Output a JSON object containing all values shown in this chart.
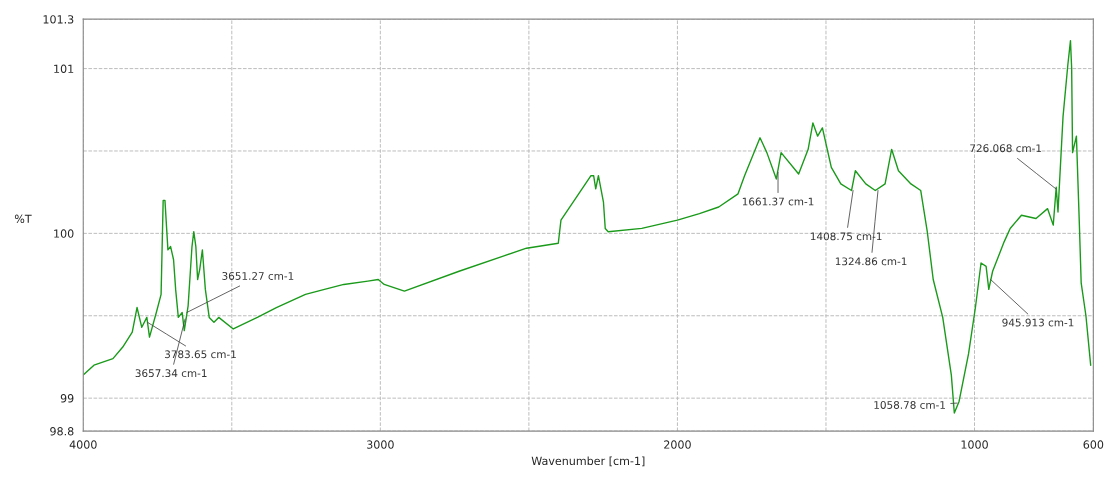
{
  "chart_data": {
    "type": "line",
    "xlabel": "Wavenumber [cm-1]",
    "ylabel": "%T",
    "xlim": [
      4000,
      600
    ],
    "ylim": [
      98.8,
      101.3
    ],
    "xticks": [
      4000,
      {
        "value": 3500,
        "label": null
      },
      3000,
      {
        "value": 2500,
        "label": null
      },
      2000,
      {
        "value": 1500,
        "label": null
      },
      1000,
      600
    ],
    "yticks": [
      98.8,
      99,
      {
        "value": 99.5,
        "label": null
      },
      100,
      {
        "value": 100.5,
        "label": null
      },
      101,
      101.3
    ],
    "grid": true,
    "line_style": "solid",
    "marker": "none",
    "series": [
      {
        "color": "#1a9a1a",
        "x": [
          4000,
          3964,
          3900,
          3867,
          3835,
          3819,
          3803,
          3786,
          3777,
          3754,
          3738,
          3731,
          3725,
          3715,
          3706,
          3696,
          3689,
          3680,
          3667,
          3660,
          3647,
          3634,
          3628,
          3621,
          3615,
          3608,
          3599,
          3589,
          3576,
          3560,
          3544,
          3495,
          3414,
          3350,
          3252,
          3188,
          3123,
          3042,
          3007,
          2987,
          2919,
          2735,
          2508,
          2401,
          2392,
          2291,
          2282,
          2275,
          2266,
          2249,
          2243,
          2233,
          2120,
          2000,
          1926,
          1861,
          1796,
          1774,
          1722,
          1699,
          1667,
          1651,
          1592,
          1560,
          1544,
          1528,
          1512,
          1482,
          1450,
          1414,
          1401,
          1366,
          1334,
          1301,
          1279,
          1256,
          1214,
          1181,
          1159,
          1139,
          1107,
          1078,
          1068,
          1052,
          1020,
          997,
          978,
          961,
          952,
          939,
          900,
          880,
          842,
          793,
          754,
          735,
          725,
          719,
          702,
          686,
          677,
          673,
          670,
          657,
          647,
          641,
          625,
          609
        ],
        "values": [
          99.14,
          99.2,
          99.24,
          99.31,
          99.4,
          99.55,
          99.43,
          99.49,
          99.37,
          99.52,
          99.63,
          100.2,
          100.2,
          99.9,
          99.92,
          99.84,
          99.66,
          99.49,
          99.52,
          99.41,
          99.56,
          99.92,
          100.01,
          99.92,
          99.72,
          99.78,
          99.9,
          99.66,
          99.49,
          99.46,
          99.49,
          99.42,
          99.49,
          99.55,
          99.63,
          99.66,
          99.69,
          99.71,
          99.72,
          99.69,
          99.65,
          99.77,
          99.91,
          99.94,
          100.08,
          100.35,
          100.35,
          100.27,
          100.35,
          100.19,
          100.03,
          100.01,
          100.03,
          100.08,
          100.12,
          100.16,
          100.24,
          100.35,
          100.58,
          100.49,
          100.33,
          100.49,
          100.36,
          100.51,
          100.67,
          100.59,
          100.64,
          100.4,
          100.3,
          100.26,
          100.38,
          100.3,
          100.26,
          100.3,
          100.51,
          100.38,
          100.3,
          100.26,
          100.01,
          99.72,
          99.49,
          99.14,
          98.91,
          98.98,
          99.27,
          99.55,
          99.82,
          99.8,
          99.66,
          99.77,
          99.95,
          100.03,
          100.11,
          100.09,
          100.15,
          100.05,
          100.28,
          100.13,
          100.71,
          101.02,
          101.17,
          101.0,
          100.49,
          100.59,
          100.05,
          99.7,
          99.5,
          99.2
        ]
      }
    ],
    "annotations": [
      {
        "text": "3783.65 cm-1",
        "x": 3783.65,
        "y": 99.46
      },
      {
        "text": "3657.34 cm-1",
        "x": 3657.34,
        "y": 99.48
      },
      {
        "text": "3651.27 cm-1",
        "x": 3651.27,
        "y": 99.52
      },
      {
        "text": "1661.37 cm-1",
        "x": 1661.37,
        "y": 100.37
      },
      {
        "text": "1408.75 cm-1",
        "x": 1408.75,
        "y": 100.26
      },
      {
        "text": "1324.86 cm-1",
        "x": 1324.86,
        "y": 100.26
      },
      {
        "text": "1058.78 cm-1",
        "x": 1058.78,
        "y": 98.97
      },
      {
        "text": "945.913 cm-1",
        "x": 945.913,
        "y": 99.72
      },
      {
        "text": "726.068 cm-1",
        "x": 726.068,
        "y": 100.27
      }
    ]
  }
}
